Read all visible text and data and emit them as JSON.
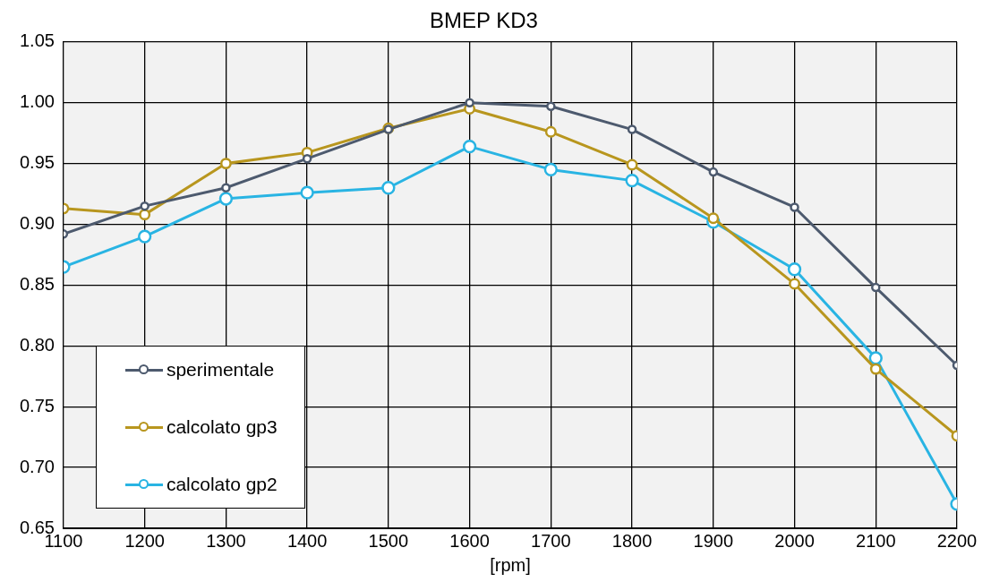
{
  "chart_data": {
    "type": "line",
    "title": "BMEP KD3",
    "xlabel": "[rpm]",
    "x": [
      1100,
      1200,
      1300,
      1400,
      1500,
      1600,
      1700,
      1800,
      1900,
      2000,
      2100,
      2200
    ],
    "xlim": [
      1100,
      2200
    ],
    "xticks": [
      1100,
      1200,
      1300,
      1400,
      1500,
      1600,
      1700,
      1800,
      1900,
      2000,
      2100,
      2200
    ],
    "ylim": [
      0.65,
      1.05
    ],
    "yticks": [
      {
        "value": 0.65,
        "label": "0.65"
      },
      {
        "value": 0.7,
        "label": "0.70"
      },
      {
        "value": 0.75,
        "label": "0.75"
      },
      {
        "value": 0.8,
        "label": "0.80"
      },
      {
        "value": 0.85,
        "label": "0.85"
      },
      {
        "value": 0.9,
        "label": "0.90"
      },
      {
        "value": 0.95,
        "label": "0.95"
      },
      {
        "value": 1,
        "label": "1.00"
      },
      {
        "value": 1.05,
        "label": "1.05"
      }
    ],
    "grid": true,
    "legend": "bottom left",
    "marker": "circle",
    "line_style": "solid",
    "series": [
      {
        "name": "sperimentale",
        "color": "#4d5a6e",
        "values": [
          0.892,
          0.915,
          0.93,
          0.954,
          0.978,
          1.0,
          0.997,
          0.978,
          0.943,
          0.914,
          0.848,
          0.784
        ]
      },
      {
        "name": "calcolato gp3",
        "color": "#b8961e",
        "values": [
          0.913,
          0.908,
          0.95,
          0.959,
          0.979,
          0.995,
          0.976,
          0.949,
          0.905,
          0.851,
          0.781,
          0.726
        ]
      },
      {
        "name": "calcolato gp2",
        "color": "#29b4e3",
        "values": [
          0.865,
          0.89,
          0.921,
          0.926,
          0.93,
          0.964,
          0.945,
          0.936,
          0.902,
          0.863,
          0.79,
          0.67
        ]
      }
    ]
  }
}
